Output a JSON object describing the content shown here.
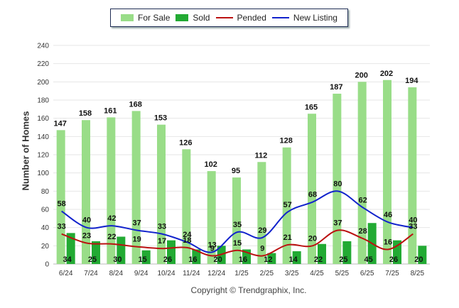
{
  "chart_data": {
    "type": "bar",
    "xlabel": "",
    "ylabel": "Number of Homes",
    "ylim": [
      0,
      240
    ],
    "yticks": [
      0,
      20,
      40,
      60,
      80,
      100,
      120,
      140,
      160,
      180,
      200,
      220,
      240
    ],
    "categories": [
      "6/24",
      "7/24",
      "8/24",
      "9/24",
      "10/24",
      "11/24",
      "12/24",
      "1/25",
      "2/25",
      "3/25",
      "4/25",
      "5/25",
      "6/25",
      "7/25",
      "8/25"
    ],
    "series": [
      {
        "name": "For Sale",
        "kind": "bar",
        "color": "#99dd88",
        "values": [
          147,
          158,
          161,
          168,
          153,
          126,
          102,
          95,
          112,
          128,
          165,
          187,
          200,
          202,
          194
        ]
      },
      {
        "name": "Sold",
        "kind": "bar",
        "color": "#22aa33",
        "values": [
          34,
          25,
          30,
          15,
          26,
          16,
          20,
          16,
          12,
          14,
          22,
          25,
          45,
          26,
          20
        ]
      },
      {
        "name": "Pended",
        "kind": "line",
        "color": "#bb1111",
        "values": [
          33,
          23,
          22,
          19,
          17,
          18,
          9,
          15,
          9,
          21,
          20,
          37,
          28,
          16,
          33
        ]
      },
      {
        "name": "New Listing",
        "kind": "line",
        "color": "#1122cc",
        "values": [
          58,
          40,
          42,
          37,
          33,
          24,
          13,
          35,
          29,
          57,
          68,
          80,
          62,
          46,
          40
        ]
      }
    ],
    "grid": true,
    "legend_position": "top",
    "copyright": "Copyright © Trendgraphix, Inc."
  }
}
